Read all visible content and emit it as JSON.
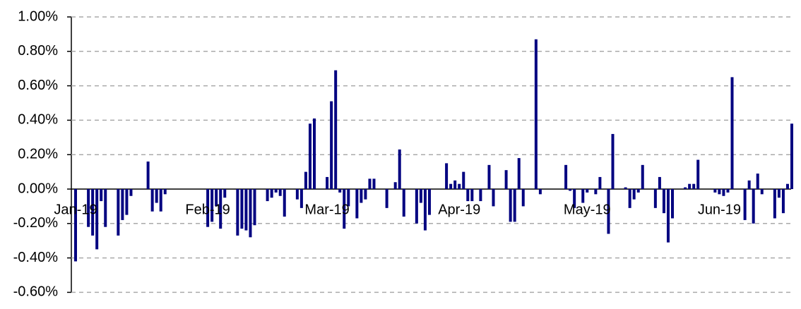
{
  "chart_data": {
    "type": "bar",
    "color": "#000080",
    "grid": true,
    "ylim": [
      -0.6,
      1.0
    ],
    "yticks": [
      {
        "value": -0.6,
        "label": "-0.60%"
      },
      {
        "value": -0.4,
        "label": "-0.40%"
      },
      {
        "value": -0.2,
        "label": "-0.20%"
      },
      {
        "value": 0,
        "label": "0.00%"
      },
      {
        "value": 0.2,
        "label": "0.20%"
      },
      {
        "value": 0.4,
        "label": "0.40%"
      },
      {
        "value": 0.6,
        "label": "0.60%"
      },
      {
        "value": 0.8,
        "label": "0.80%"
      },
      {
        "value": 1.0,
        "label": "1.00%"
      }
    ],
    "categories": [
      "Jan-19",
      null,
      null,
      null,
      null,
      null,
      null,
      null,
      null,
      null,
      null,
      null,
      null,
      null,
      null,
      null,
      null,
      null,
      null,
      null,
      null,
      null,
      null,
      null,
      null,
      null,
      null,
      null,
      null,
      null,
      null,
      "Feb-19",
      null,
      null,
      null,
      null,
      null,
      null,
      null,
      null,
      null,
      null,
      null,
      null,
      null,
      null,
      null,
      null,
      null,
      null,
      null,
      null,
      null,
      null,
      null,
      null,
      null,
      null,
      null,
      "Mar-19",
      null,
      null,
      null,
      null,
      null,
      null,
      null,
      null,
      null,
      null,
      null,
      null,
      null,
      null,
      null,
      null,
      null,
      null,
      null,
      null,
      null,
      null,
      null,
      null,
      null,
      null,
      null,
      null,
      null,
      null,
      "Apr-19",
      null,
      null,
      null,
      null,
      null,
      null,
      null,
      null,
      null,
      null,
      null,
      null,
      null,
      null,
      null,
      null,
      null,
      null,
      null,
      null,
      null,
      null,
      null,
      null,
      null,
      null,
      null,
      null,
      null,
      "May-19",
      null,
      null,
      null,
      null,
      null,
      null,
      null,
      null,
      null,
      null,
      null,
      null,
      null,
      null,
      null,
      null,
      null,
      null,
      null,
      null,
      null,
      null,
      null,
      null,
      null,
      null,
      null,
      null,
      null,
      null,
      "Jun-19",
      null,
      null,
      null,
      null,
      null,
      null,
      null,
      null,
      null,
      null,
      null,
      null,
      null,
      null,
      null,
      null,
      null
    ],
    "values": [
      -0.42,
      null,
      null,
      -0.22,
      -0.27,
      -0.35,
      -0.07,
      -0.22,
      null,
      null,
      -0.27,
      -0.18,
      -0.15,
      -0.04,
      null,
      null,
      null,
      0.16,
      -0.13,
      -0.08,
      -0.13,
      -0.03,
      null,
      null,
      null,
      null,
      null,
      null,
      null,
      null,
      null,
      -0.22,
      -0.19,
      -0.1,
      -0.23,
      -0.05,
      null,
      null,
      -0.27,
      -0.23,
      -0.24,
      -0.28,
      -0.21,
      null,
      null,
      -0.07,
      -0.05,
      -0.02,
      -0.04,
      -0.16,
      null,
      null,
      -0.06,
      -0.11,
      0.1,
      0.38,
      0.41,
      null,
      null,
      0.07,
      0.51,
      0.69,
      -0.02,
      -0.23,
      -0.1,
      null,
      -0.17,
      -0.08,
      -0.06,
      0.06,
      0.06,
      null,
      null,
      -0.11,
      null,
      0.04,
      0.23,
      -0.16,
      null,
      null,
      -0.2,
      -0.08,
      -0.24,
      -0.15,
      null,
      null,
      null,
      0.15,
      0.03,
      0.05,
      0.03,
      0.1,
      -0.07,
      -0.07,
      null,
      -0.07,
      null,
      0.14,
      -0.1,
      null,
      null,
      0.11,
      -0.19,
      -0.19,
      0.18,
      -0.1,
      null,
      null,
      0.87,
      -0.03,
      null,
      null,
      null,
      null,
      null,
      0.14,
      -0.01,
      -0.11,
      null,
      -0.08,
      -0.02,
      null,
      -0.03,
      0.07,
      null,
      -0.26,
      0.32,
      null,
      null,
      0.01,
      -0.11,
      -0.06,
      -0.02,
      0.14,
      null,
      null,
      -0.11,
      0.07,
      -0.14,
      -0.31,
      -0.17,
      null,
      null,
      0.01,
      0.03,
      0.03,
      0.17,
      null,
      null,
      null,
      -0.02,
      -0.03,
      -0.04,
      -0.02,
      0.65,
      null,
      null,
      -0.18,
      0.05,
      -0.2,
      0.09,
      -0.03,
      null,
      null,
      -0.17,
      -0.05,
      -0.14,
      0.03,
      0.38
    ]
  }
}
